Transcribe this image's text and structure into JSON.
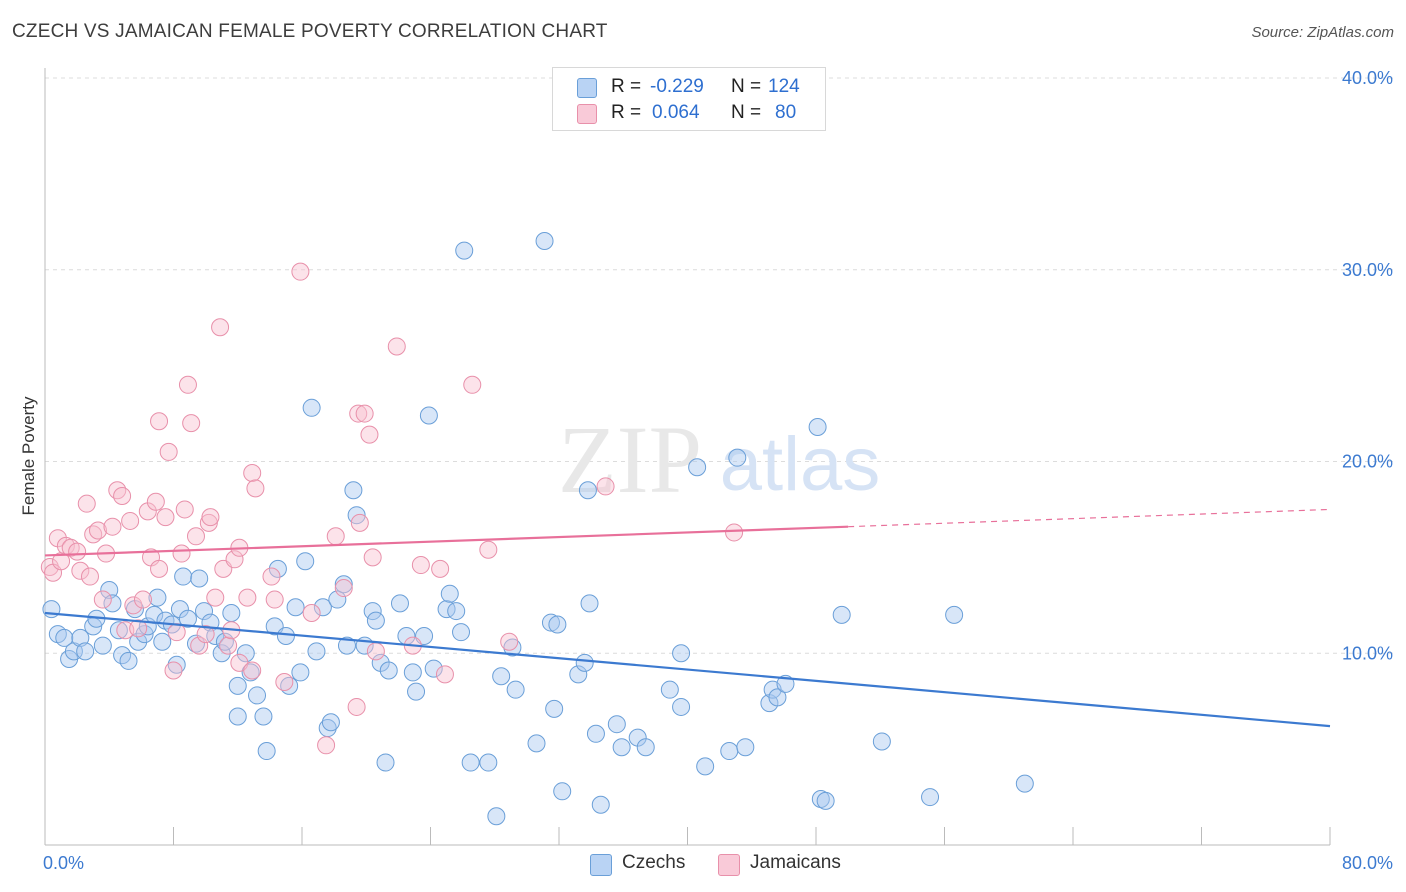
{
  "title": "CZECH VS JAMAICAN FEMALE POVERTY CORRELATION CHART",
  "source": "Source: ZipAtlas.com",
  "watermark": {
    "zip": "ZIP",
    "atlas": "atlas"
  },
  "legend": {
    "rows": [
      {
        "r_label": "R =",
        "r_value": "-0.229",
        "n_label": "N =",
        "n_value": "124",
        "color": "#a8c8f0",
        "border": "#6a9fd8"
      },
      {
        "r_label": "R =",
        "r_value": "0.064",
        "n_label": "N =",
        "n_value": "80",
        "color": "#f8c0d0",
        "border": "#e890aa"
      }
    ],
    "bottom": [
      {
        "label": "Czechs",
        "color": "#a8c8f0",
        "border": "#6a9fd8"
      },
      {
        "label": "Jamaicans",
        "color": "#f8c0d0",
        "border": "#e890aa"
      }
    ]
  },
  "chart_data": {
    "type": "scatter",
    "title": "CZECH VS JAMAICAN FEMALE POVERTY CORRELATION CHART",
    "xlabel": "",
    "ylabel": "Female Poverty",
    "xlim": [
      0,
      80
    ],
    "ylim": [
      0,
      40
    ],
    "x_tick_labels": [
      "0.0%",
      "80.0%"
    ],
    "y_ticks": [
      10,
      20,
      30,
      40
    ],
    "y_tick_labels": [
      "10.0%",
      "20.0%",
      "30.0%",
      "40.0%"
    ],
    "grid": "horizontal dashed",
    "legend_placement": "top-center and bottom",
    "colors": {
      "czechs": "#3c7ad0",
      "jamaicans": "#e8709a"
    },
    "series": [
      {
        "name": "Czechs",
        "trend": {
          "x": [
            0,
            80
          ],
          "y": [
            12.1,
            6.2
          ]
        },
        "points": [
          [
            0.4,
            12.3
          ],
          [
            0.8,
            11.0
          ],
          [
            1.2,
            10.8
          ],
          [
            1.5,
            9.7
          ],
          [
            1.8,
            10.1
          ],
          [
            2.2,
            10.8
          ],
          [
            2.5,
            10.1
          ],
          [
            3.0,
            11.4
          ],
          [
            3.2,
            11.8
          ],
          [
            3.6,
            10.4
          ],
          [
            4.0,
            13.3
          ],
          [
            4.2,
            12.6
          ],
          [
            4.6,
            11.2
          ],
          [
            4.8,
            9.9
          ],
          [
            5.2,
            9.6
          ],
          [
            5.6,
            12.3
          ],
          [
            5.8,
            10.6
          ],
          [
            6.2,
            11.0
          ],
          [
            6.4,
            11.4
          ],
          [
            6.8,
            12.0
          ],
          [
            7.0,
            12.9
          ],
          [
            7.3,
            10.6
          ],
          [
            7.5,
            11.7
          ],
          [
            7.9,
            11.5
          ],
          [
            8.2,
            9.4
          ],
          [
            8.4,
            12.3
          ],
          [
            8.6,
            14.0
          ],
          [
            8.9,
            11.8
          ],
          [
            9.4,
            10.5
          ],
          [
            9.6,
            13.9
          ],
          [
            9.9,
            12.2
          ],
          [
            10.3,
            11.6
          ],
          [
            10.6,
            10.9
          ],
          [
            11.0,
            10.0
          ],
          [
            11.2,
            10.6
          ],
          [
            11.6,
            12.1
          ],
          [
            12.0,
            8.3
          ],
          [
            12.0,
            6.7
          ],
          [
            12.5,
            10.0
          ],
          [
            12.8,
            9.0
          ],
          [
            13.2,
            7.8
          ],
          [
            13.6,
            6.7
          ],
          [
            13.8,
            4.9
          ],
          [
            14.3,
            11.4
          ],
          [
            14.5,
            14.4
          ],
          [
            15.0,
            10.9
          ],
          [
            15.2,
            8.3
          ],
          [
            15.6,
            12.4
          ],
          [
            15.9,
            9.0
          ],
          [
            16.2,
            14.8
          ],
          [
            16.6,
            22.8
          ],
          [
            16.9,
            10.1
          ],
          [
            17.3,
            12.4
          ],
          [
            17.6,
            6.1
          ],
          [
            17.8,
            6.4
          ],
          [
            18.2,
            12.8
          ],
          [
            18.6,
            13.6
          ],
          [
            18.8,
            10.4
          ],
          [
            19.2,
            18.5
          ],
          [
            19.4,
            17.2
          ],
          [
            19.9,
            10.4
          ],
          [
            20.4,
            12.2
          ],
          [
            20.6,
            11.7
          ],
          [
            20.9,
            9.5
          ],
          [
            21.4,
            9.1
          ],
          [
            21.2,
            4.3
          ],
          [
            22.1,
            12.6
          ],
          [
            22.5,
            10.9
          ],
          [
            22.9,
            9.0
          ],
          [
            23.1,
            8.0
          ],
          [
            23.6,
            10.9
          ],
          [
            23.9,
            22.4
          ],
          [
            24.2,
            9.2
          ],
          [
            25.0,
            12.3
          ],
          [
            25.2,
            13.1
          ],
          [
            25.6,
            12.2
          ],
          [
            25.9,
            11.1
          ],
          [
            26.1,
            31.0
          ],
          [
            26.5,
            4.3
          ],
          [
            27.6,
            4.3
          ],
          [
            28.1,
            1.5
          ],
          [
            28.4,
            8.8
          ],
          [
            29.1,
            10.3
          ],
          [
            29.3,
            8.1
          ],
          [
            30.6,
            5.3
          ],
          [
            31.1,
            31.5
          ],
          [
            31.5,
            11.6
          ],
          [
            31.9,
            11.5
          ],
          [
            31.7,
            7.1
          ],
          [
            32.2,
            2.8
          ],
          [
            33.2,
            8.9
          ],
          [
            33.8,
            18.5
          ],
          [
            33.9,
            12.6
          ],
          [
            33.6,
            9.5
          ],
          [
            34.3,
            5.8
          ],
          [
            34.6,
            2.1
          ],
          [
            35.6,
            6.3
          ],
          [
            35.9,
            5.1
          ],
          [
            36.9,
            5.6
          ],
          [
            37.4,
            5.1
          ],
          [
            38.9,
            8.1
          ],
          [
            39.6,
            7.2
          ],
          [
            39.6,
            10.0
          ],
          [
            40.6,
            19.7
          ],
          [
            41.1,
            4.1
          ],
          [
            42.6,
            4.9
          ],
          [
            43.1,
            20.2
          ],
          [
            43.6,
            5.1
          ],
          [
            45.1,
            7.4
          ],
          [
            45.3,
            8.1
          ],
          [
            45.6,
            7.7
          ],
          [
            46.1,
            8.4
          ],
          [
            48.1,
            21.8
          ],
          [
            48.3,
            2.4
          ],
          [
            48.6,
            2.3
          ],
          [
            49.6,
            12.0
          ],
          [
            52.1,
            5.4
          ],
          [
            55.1,
            2.5
          ],
          [
            56.6,
            12.0
          ],
          [
            61.0,
            3.2
          ]
        ]
      },
      {
        "name": "Jamaicans",
        "trend": {
          "x": [
            0,
            80
          ],
          "y": [
            15.1,
            17.5
          ]
        },
        "points": [
          [
            0.3,
            14.5
          ],
          [
            0.5,
            14.2
          ],
          [
            0.8,
            16.0
          ],
          [
            1.0,
            14.8
          ],
          [
            1.3,
            15.6
          ],
          [
            1.6,
            15.5
          ],
          [
            2.0,
            15.3
          ],
          [
            2.2,
            14.3
          ],
          [
            2.6,
            17.8
          ],
          [
            2.8,
            14.0
          ],
          [
            3.0,
            16.2
          ],
          [
            3.3,
            16.4
          ],
          [
            3.6,
            12.8
          ],
          [
            3.8,
            15.2
          ],
          [
            4.2,
            16.6
          ],
          [
            4.5,
            18.5
          ],
          [
            4.8,
            18.2
          ],
          [
            5.0,
            11.2
          ],
          [
            5.3,
            16.9
          ],
          [
            5.5,
            12.5
          ],
          [
            5.8,
            11.3
          ],
          [
            6.1,
            12.8
          ],
          [
            6.4,
            17.4
          ],
          [
            6.6,
            15.0
          ],
          [
            6.9,
            17.9
          ],
          [
            7.1,
            14.4
          ],
          [
            7.1,
            22.1
          ],
          [
            7.5,
            17.1
          ],
          [
            7.7,
            20.5
          ],
          [
            8.0,
            9.1
          ],
          [
            8.2,
            11.1
          ],
          [
            8.5,
            15.2
          ],
          [
            8.7,
            17.5
          ],
          [
            8.9,
            24.0
          ],
          [
            9.1,
            22.0
          ],
          [
            9.4,
            16.1
          ],
          [
            9.6,
            10.4
          ],
          [
            10.0,
            11.0
          ],
          [
            10.2,
            16.8
          ],
          [
            10.3,
            17.1
          ],
          [
            10.6,
            12.9
          ],
          [
            10.9,
            27.0
          ],
          [
            11.1,
            14.4
          ],
          [
            11.4,
            10.4
          ],
          [
            11.6,
            11.2
          ],
          [
            11.8,
            14.9
          ],
          [
            12.1,
            15.5
          ],
          [
            12.1,
            9.5
          ],
          [
            12.6,
            12.9
          ],
          [
            12.9,
            9.1
          ],
          [
            12.9,
            19.4
          ],
          [
            13.1,
            18.6
          ],
          [
            14.1,
            14.0
          ],
          [
            14.3,
            12.8
          ],
          [
            14.9,
            8.5
          ],
          [
            15.9,
            29.9
          ],
          [
            16.6,
            12.1
          ],
          [
            17.5,
            5.2
          ],
          [
            18.1,
            16.1
          ],
          [
            18.6,
            13.4
          ],
          [
            19.4,
            7.2
          ],
          [
            19.5,
            22.5
          ],
          [
            19.6,
            16.8
          ],
          [
            19.9,
            22.5
          ],
          [
            20.2,
            21.4
          ],
          [
            20.4,
            15.0
          ],
          [
            20.6,
            10.1
          ],
          [
            21.9,
            26.0
          ],
          [
            22.9,
            10.4
          ],
          [
            23.4,
            14.6
          ],
          [
            24.6,
            14.4
          ],
          [
            24.9,
            8.9
          ],
          [
            26.6,
            24.0
          ],
          [
            27.6,
            15.4
          ],
          [
            28.9,
            10.6
          ],
          [
            34.9,
            18.7
          ],
          [
            42.9,
            16.3
          ]
        ]
      }
    ]
  }
}
